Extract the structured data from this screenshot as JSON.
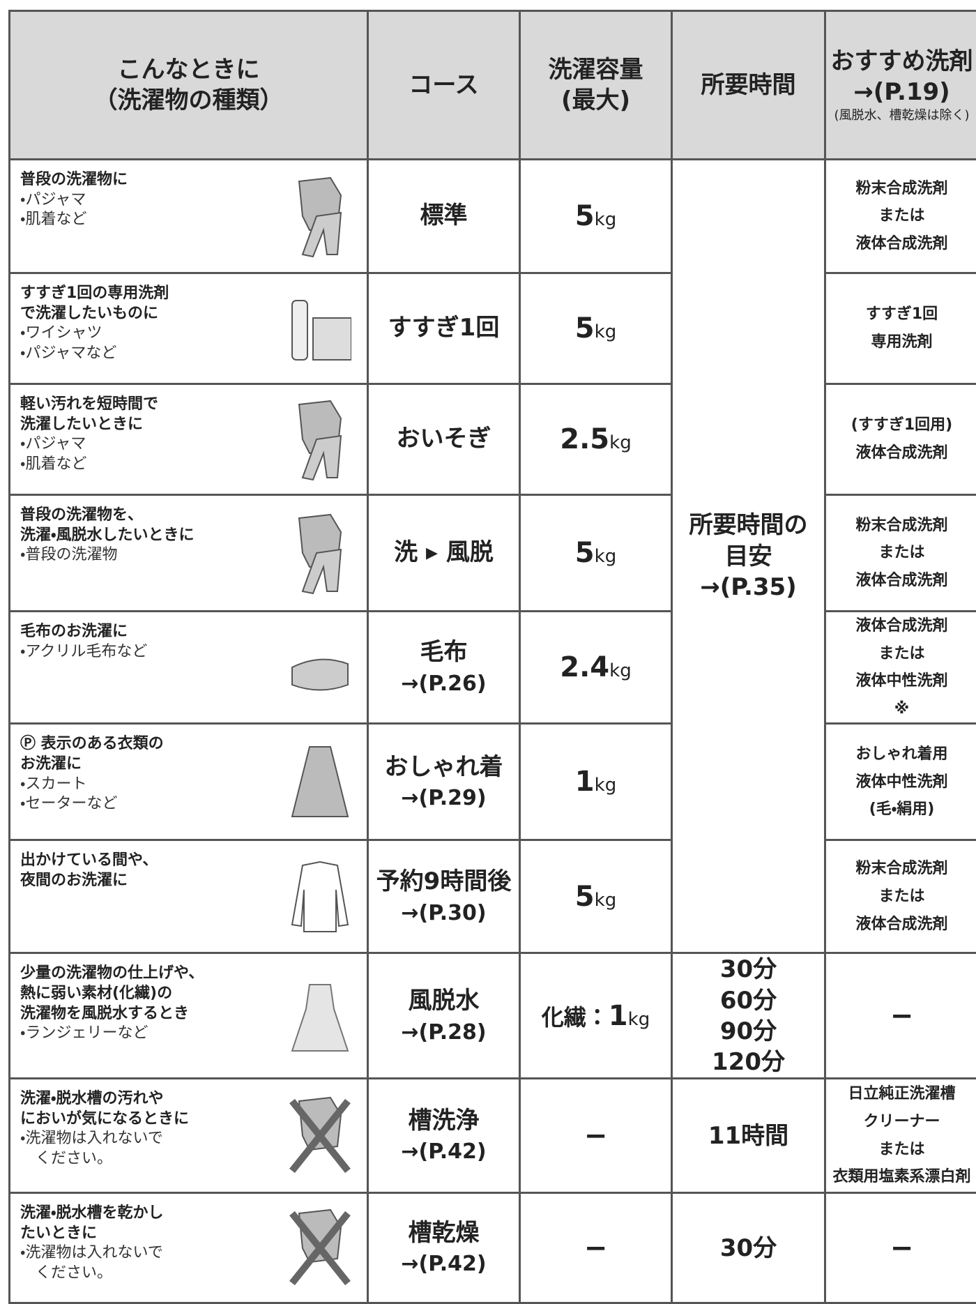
{
  "header": [
    "こんなときに\n（洗濯物の種類）",
    "コース",
    "洗濯容量\n(最大)",
    "所要時間",
    {
      "lines": [
        "おすすめ洗剤",
        "→(P.19)"
      ],
      "note": "(風脱水、槽乾燥は除く)"
    }
  ],
  "shared_time": [
    "所要時間の",
    "目安",
    "→(P.35)"
  ],
  "rows": [
    {
      "titles": [
        "普段の洗濯物に"
      ],
      "items": [
        "・パジャマ",
        "・肌着など"
      ],
      "course": [
        "標準"
      ],
      "capacity": {
        "amount": "5",
        "unit": "kg"
      },
      "detergent": [
        "粉末合成洗剤",
        "または",
        "液体合成洗剤"
      ]
    },
    {
      "titles": [
        "すすぎ1回の専用洗剤",
        "で洗濯したいものに"
      ],
      "items": [
        "・ワイシャツ",
        "・パジャマなど"
      ],
      "course": [
        "すすぎ1回"
      ],
      "capacity": {
        "amount": "5",
        "unit": "kg"
      },
      "detergent": [
        "すすぎ1回",
        "専用洗剤"
      ]
    },
    {
      "titles": [
        "軽い汚れを短時間で",
        "洗濯したいときに"
      ],
      "items": [
        "・パジャマ",
        "・肌着など"
      ],
      "course": [
        "おいそぎ"
      ],
      "capacity": {
        "amount": "2.5",
        "unit": "kg"
      },
      "detergent": [
        "(すすぎ1回用)",
        "液体合成洗剤"
      ]
    },
    {
      "titles": [
        "普段の洗濯物を、",
        "洗濯・風脱水したいときに"
      ],
      "items": [
        "・普段の洗濯物"
      ],
      "course": [
        "洗 ▸ 風脱"
      ],
      "capacity": {
        "amount": "5",
        "unit": "kg"
      },
      "detergent": [
        "粉末合成洗剤",
        "または",
        "液体合成洗剤"
      ]
    },
    {
      "titles": [
        "毛布のお洗濯に"
      ],
      "items": [
        "・アクリル毛布など"
      ],
      "course": [
        "毛布",
        "→(P.26)"
      ],
      "capacity": {
        "amount": "2.4",
        "unit": "kg"
      },
      "detergent": [
        "液体合成洗剤",
        "または",
        "液体中性洗剤",
        "※"
      ]
    },
    {
      "titles": [
        "Ⓟ 表示のある衣類の",
        "お洗濯に"
      ],
      "items": [
        "・スカート",
        "・セーターなど"
      ],
      "course": [
        "おしゃれ着",
        "→(P.29)"
      ],
      "capacity": {
        "amount": "1",
        "unit": "kg"
      },
      "detergent": [
        "おしゃれ着用",
        "液体中性洗剤",
        "(毛・絹用)"
      ]
    },
    {
      "titles": [
        "出かけている間や、",
        "夜間のお洗濯に"
      ],
      "items": [],
      "course": [
        "予約9時間後",
        "→(P.30)"
      ],
      "capacity": {
        "amount": "5",
        "unit": "kg"
      },
      "detergent": [
        "粉末合成洗剤",
        "または",
        "液体合成洗剤"
      ]
    },
    {
      "titles": [
        "少量の洗濯物の仕上げや、",
        "熱に弱い素材(化繊)の",
        "洗濯物を風脱水するとき"
      ],
      "items": [
        "・ランジェリーなど"
      ],
      "course": [
        "風脱水",
        "→(P.28)"
      ],
      "capacity": {
        "prefix": "化繊：",
        "amount": "1",
        "unit": "kg"
      },
      "time": [
        "30分",
        "60分",
        "90分",
        "120分"
      ],
      "detergent": [
        "−"
      ]
    },
    {
      "titles": [
        "洗濯・脱水槽の汚れや",
        "においが気になるときに"
      ],
      "items": [
        "・洗濯物は入れないで",
        "　ください。"
      ],
      "course": [
        "槽洗浄",
        "→(P.42)"
      ],
      "capacity": {
        "text": "−"
      },
      "time": [
        "11時間"
      ],
      "detergent": [
        "日立純正洗濯槽",
        "クリーナー",
        "または",
        "衣類用塩素系漂白剤"
      ]
    },
    {
      "titles": [
        "洗濯・脱水槽を乾かし",
        "たいときに"
      ],
      "items": [
        "・洗濯物は入れないで",
        "　ください。"
      ],
      "course": [
        "槽乾燥",
        "→(P.42)"
      ],
      "capacity": {
        "text": "−"
      },
      "time": [
        "30分"
      ],
      "detergent": [
        "−"
      ]
    }
  ]
}
